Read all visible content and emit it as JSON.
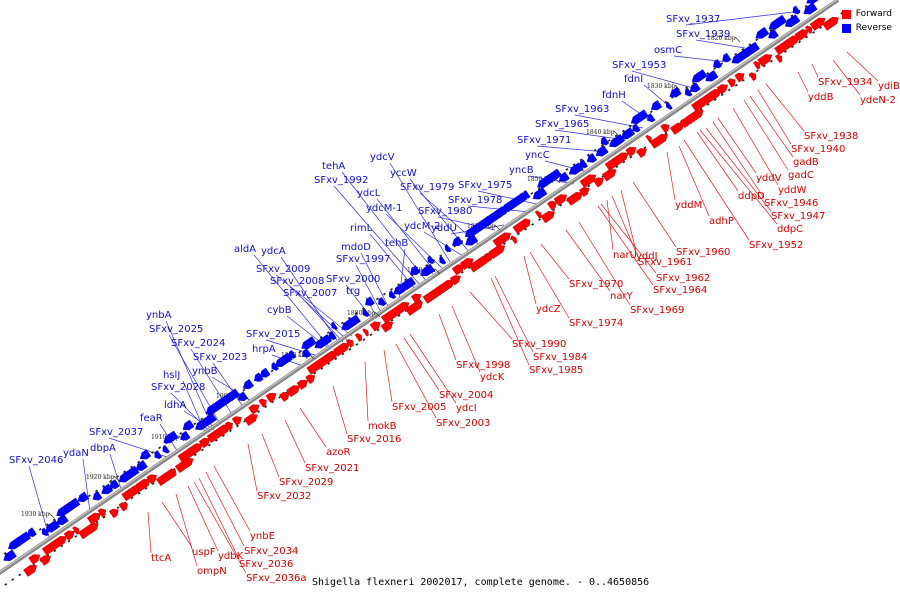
{
  "caption": "Shigella flexneri 2002017, complete genome. - 0..4650856",
  "legend": {
    "forward": {
      "label": "Forward",
      "color": "#ff0000"
    },
    "reverse": {
      "label": "Reverse",
      "color": "#0000ff"
    }
  },
  "axis": {
    "unit": "kbp",
    "ticks": [
      "1820 kbp",
      "1830 kbp",
      "1840 kbp",
      "1850 kbp",
      "1860 kbp",
      "1870 kbp",
      "1880 kbp",
      "1890 kbp",
      "1900 kbp",
      "1910 kbp",
      "1920 kbp",
      "1930 kbp"
    ]
  },
  "reverse_genes": [
    "SFxv_1937",
    "SFxv_1939",
    "osmC",
    "SFxv_1953",
    "fdnI",
    "fdnH",
    "SFxv_1963",
    "SFxv_1965",
    "SFxv_1971",
    "yncC",
    "yncB",
    "SFxv_1975",
    "SFxv_1978",
    "SFxv_1979",
    "yccW",
    "ydcV",
    "SFxv_1980",
    "yddU",
    "ydcL",
    "ydcM-1",
    "ydcM-2",
    "SFxv_1992",
    "tehA",
    "rimL",
    "tehB",
    "mdoD",
    "SFxv_1997",
    "ydcA",
    "aldA",
    "SFxv_2009",
    "SFxv_2008",
    "SFxv_2007",
    "SFxv_2000",
    "trg",
    "cybB",
    "SFxv_2015",
    "hrpA",
    "ynbA",
    "SFxv_2025",
    "SFxv_2024",
    "SFxv_2023",
    "ynbB",
    "hslJ",
    "SFxv_2028",
    "ldhA",
    "feaR",
    "SFxv_2037",
    "dbpA",
    "ydaN",
    "SFxv_2046"
  ],
  "forward_genes": [
    "ydiB",
    "SFxv_1934",
    "ydeN-2",
    "yddB",
    "SFxv_1938",
    "SFxv_1940",
    "gadB",
    "gadC",
    "yddV",
    "yddW",
    "SFxv_1946",
    "SFxv_1947",
    "ddpD",
    "ddpC",
    "SFxv_1952",
    "yddM",
    "adhP",
    "SFxv_1960",
    "SFxv_1961",
    "narU",
    "yddJ",
    "SFxv_1962",
    "SFxv_1964",
    "SFxv_1970",
    "narY",
    "SFxv_1969",
    "ydcZ",
    "SFxv_1974",
    "SFxv_1990",
    "SFxv_1984",
    "SFxv_1985",
    "SFxv_1998",
    "ydcK",
    "SFxv_2004",
    "SFxv_2005",
    "ydcI",
    "SFxv_2003",
    "mokB",
    "SFxv_2016",
    "azoR",
    "SFxv_2021",
    "SFxv_2029",
    "SFxv_2032",
    "ynbE",
    "SFxv_2034",
    "SFxv_2036",
    "SFxv_2036a",
    "ydbK",
    "ompN",
    "uspF",
    "ttcA"
  ]
}
